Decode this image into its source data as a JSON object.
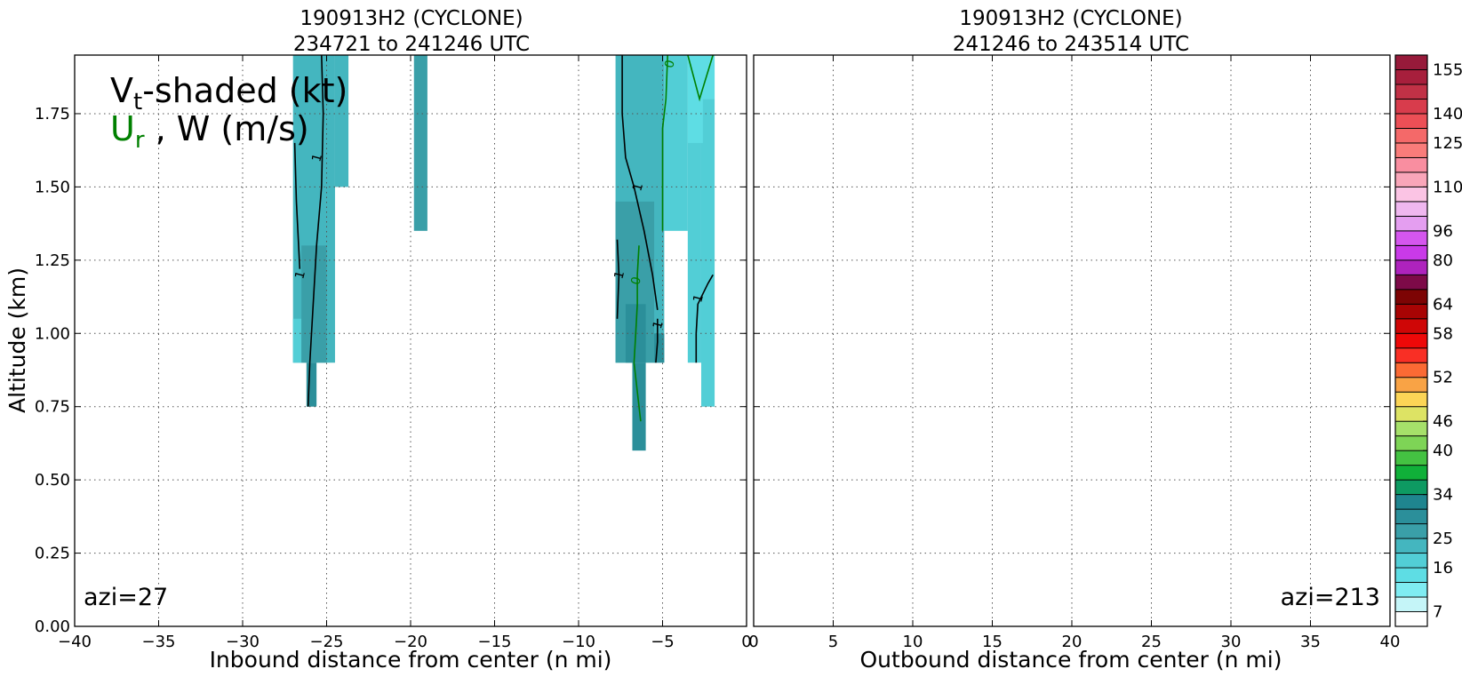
{
  "chart_data": [
    {
      "type": "contour",
      "title": "190913H2 (CYCLONE)",
      "subtitle": "234721 to 241246 UTC",
      "xlabel": "Inbound distance from center (n mi)",
      "ylabel": "Altitude (km)",
      "xlim": [
        -40,
        0
      ],
      "ylim": [
        0,
        1.95
      ],
      "xticks": [
        -40,
        -35,
        -30,
        -25,
        -20,
        -15,
        -10,
        -5,
        0
      ],
      "xtick_labels": [
        "−40",
        "−35",
        "−30",
        "−25",
        "−20",
        "−15",
        "−10",
        "−5",
        "0"
      ],
      "yticks": [
        0,
        0.25,
        0.5,
        0.75,
        1.0,
        1.25,
        1.5,
        1.75
      ],
      "ytick_labels": [
        "0.00",
        "0.25",
        "0.50",
        "0.75",
        "1.00",
        "1.25",
        "1.50",
        "1.75"
      ],
      "grid": true,
      "annotation": "azi=27",
      "legend_main": "V",
      "legend_main_sub": "t",
      "legend_main_rest": "-shaded (kt)",
      "legend_second": "U",
      "legend_second_sub": "r",
      "legend_second_rest": " , W (m/s)",
      "shaded_regions": [
        {
          "x0": -27,
          "x1": -25,
          "y0": 0.9,
          "y1": 1.95,
          "value": 19
        },
        {
          "x0": -27,
          "x1": -26.5,
          "y0": 0.9,
          "y1": 1.05,
          "value": 16
        },
        {
          "x0": -26.5,
          "x1": -25,
          "y0": 0.9,
          "y1": 1.3,
          "value": 22
        },
        {
          "x0": -26.2,
          "x1": -25.6,
          "y0": 0.75,
          "y1": 0.9,
          "value": 25
        },
        {
          "x0": -25,
          "x1": -24.5,
          "y0": 0.9,
          "y1": 1.95,
          "value": 19
        },
        {
          "x0": -24.5,
          "x1": -23.7,
          "y0": 1.5,
          "y1": 1.95,
          "value": 19
        },
        {
          "x0": -19.8,
          "x1": -19,
          "y0": 1.35,
          "y1": 1.95,
          "value": 22
        },
        {
          "x0": -7.8,
          "x1": -4.9,
          "y0": 0.9,
          "y1": 1.95,
          "value": 19
        },
        {
          "x0": -7.8,
          "x1": -5.5,
          "y0": 0.9,
          "y1": 1.45,
          "value": 22
        },
        {
          "x0": -7.2,
          "x1": -6,
          "y0": 0.9,
          "y1": 1.1,
          "value": 25
        },
        {
          "x0": -6.8,
          "x1": -6,
          "y0": 0.6,
          "y1": 0.9,
          "value": 25
        },
        {
          "x0": -5.5,
          "x1": -4.9,
          "y0": 0.9,
          "y1": 1.0,
          "value": 25
        },
        {
          "x0": -4.9,
          "x1": -3.5,
          "y0": 1.35,
          "y1": 1.95,
          "value": 16
        },
        {
          "x0": -3.5,
          "x1": -2.7,
          "y0": 0.9,
          "y1": 1.95,
          "value": 16
        },
        {
          "x0": -2.7,
          "x1": -1.9,
          "y0": 0.75,
          "y1": 1.8,
          "value": 16
        },
        {
          "x0": -2.7,
          "x1": -1.9,
          "y0": 1.8,
          "y1": 1.95,
          "value": 13
        },
        {
          "x0": -3.5,
          "x1": -2.6,
          "y0": 1.65,
          "y1": 1.95,
          "value": 13
        }
      ],
      "contours": [
        {
          "field": "W",
          "level": 1,
          "label": "1",
          "color": "#000000",
          "points": [
            [
              -25.3,
              1.95
            ],
            [
              -25.2,
              1.75
            ],
            [
              -25.3,
              1.5
            ],
            [
              -25.6,
              1.3
            ],
            [
              -25.8,
              1.1
            ],
            [
              -26,
              0.9
            ],
            [
              -26.1,
              0.75
            ]
          ],
          "label_at": [
            -25.6,
            1.6
          ]
        },
        {
          "field": "W",
          "level": 1,
          "label": "1",
          "color": "#000000",
          "points": [
            [
              -26.9,
              1.65
            ],
            [
              -26.8,
              1.45
            ],
            [
              -26.6,
              1.22
            ]
          ],
          "label_at": [
            -26.6,
            1.2
          ]
        },
        {
          "field": "W",
          "level": 1,
          "label": "1",
          "color": "#000000",
          "points": [
            [
              -7.4,
              1.95
            ],
            [
              -7.4,
              1.75
            ],
            [
              -7.2,
              1.6
            ],
            [
              -6.7,
              1.5
            ],
            [
              -6.1,
              1.35
            ],
            [
              -5.6,
              1.2
            ],
            [
              -5.3,
              1.08
            ]
          ],
          "label_at": [
            -6.5,
            1.5
          ]
        },
        {
          "field": "W",
          "level": 1,
          "label": "1",
          "color": "#000000",
          "points": [
            [
              -7.7,
              1.32
            ],
            [
              -7.6,
              1.2
            ],
            [
              -7.7,
              1.05
            ]
          ],
          "label_at": [
            -7.6,
            1.2
          ]
        },
        {
          "field": "W",
          "level": 1,
          "label": "1",
          "color": "#000000",
          "points": [
            [
              -5.3,
              1.05
            ],
            [
              -5.3,
              0.97
            ],
            [
              -5.4,
              0.9
            ]
          ],
          "label_at": [
            -5.3,
            1.03
          ]
        },
        {
          "field": "W",
          "level": 1,
          "label": "1",
          "color": "#000000",
          "points": [
            [
              -3.0,
              0.9
            ],
            [
              -3.0,
              1.0
            ],
            [
              -2.9,
              1.1
            ],
            [
              -2.3,
              1.17
            ],
            [
              -2.0,
              1.2
            ]
          ],
          "label_at": [
            -2.9,
            1.12
          ]
        },
        {
          "field": "Ur",
          "level": 0,
          "label": "0",
          "color": "#008000",
          "points": [
            [
              -4.7,
              1.95
            ],
            [
              -4.8,
              1.8
            ],
            [
              -5.0,
              1.7
            ],
            [
              -5.0,
              1.35
            ]
          ],
          "label_at": [
            -4.6,
            1.92
          ]
        },
        {
          "field": "Ur",
          "level": 0,
          "label": "0",
          "color": "#008000",
          "points": [
            [
              -3.5,
              1.95
            ],
            [
              -2.8,
              1.8
            ],
            [
              -2.0,
              1.95
            ]
          ],
          "label_at": null
        },
        {
          "field": "Ur",
          "level": 0,
          "label": "0",
          "color": "#008000",
          "points": [
            [
              -6.4,
              1.3
            ],
            [
              -6.5,
              1.2
            ],
            [
              -6.5,
              1.1
            ],
            [
              -6.6,
              1.0
            ],
            [
              -6.7,
              0.9
            ],
            [
              -6.4,
              0.75
            ],
            [
              -6.3,
              0.7
            ]
          ],
          "label_at": [
            -6.6,
            1.18
          ]
        }
      ]
    },
    {
      "type": "contour",
      "title": "190913H2 (CYCLONE)",
      "subtitle": "241246 to 243514 UTC",
      "xlabel": "Outbound distance from center (n mi)",
      "xlim": [
        0,
        40
      ],
      "ylim": [
        0,
        1.95
      ],
      "xticks": [
        0,
        5,
        10,
        15,
        20,
        25,
        30,
        35,
        40
      ],
      "xtick_labels": [
        "0",
        "5",
        "10",
        "15",
        "20",
        "25",
        "30",
        "35",
        "40"
      ],
      "yticks": [
        0,
        0.25,
        0.5,
        0.75,
        1.0,
        1.25,
        1.5,
        1.75
      ],
      "grid": true,
      "annotation": "azi=213",
      "shaded_regions": [],
      "contours": []
    }
  ],
  "colorbar": {
    "levels": [
      4,
      7,
      10,
      13,
      16,
      19,
      22,
      25,
      28,
      31,
      34,
      37,
      40,
      43,
      46,
      49,
      52,
      55,
      58,
      61,
      64,
      72,
      80,
      88,
      96,
      103,
      110,
      118,
      125,
      133,
      140,
      148,
      155,
      160
    ],
    "colors": [
      "#ffffff",
      "#c5f5f8",
      "#7fecf2",
      "#5edde4",
      "#52ced6",
      "#44b6bf",
      "#3a9fa8",
      "#2b8f9a",
      "#1f858f",
      "#0e9a62",
      "#10b039",
      "#44c242",
      "#7ed456",
      "#a6e06a",
      "#dde364",
      "#fcd556",
      "#f9a345",
      "#fb6a34",
      "#f92f25",
      "#ee0808",
      "#cf0606",
      "#a80404",
      "#7d0404",
      "#7d0a48",
      "#ae23bd",
      "#c93ae8",
      "#d556ee",
      "#e49ef0",
      "#efb7ef",
      "#fbc4e4",
      "#f9a6b9",
      "#f98ea0",
      "#f97c7a",
      "#f46969",
      "#ec4f56",
      "#d83c4c",
      "#c13146",
      "#a71f3c",
      "#971a3a"
    ],
    "tick_labels": [
      "7",
      "16",
      "25",
      "34",
      "40",
      "46",
      "52",
      "58",
      "64",
      "80",
      "96",
      "110",
      "125",
      "140",
      "155"
    ]
  }
}
